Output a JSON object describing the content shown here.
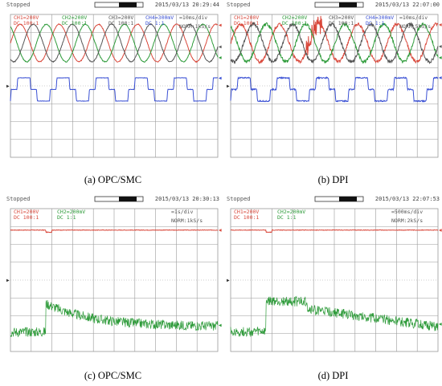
{
  "colors": {
    "ch1": "#d9483b",
    "ch2": "#2e9b3a",
    "ch3": "#555555",
    "ch4": "#3a50d4",
    "grid": "#9a9a9a"
  },
  "chart_data": [
    {
      "id": "a",
      "type": "line",
      "caption": "(a) OPC/SMC",
      "status": "Stopped",
      "timestamp": "2015/03/13 20:29:44",
      "labels": [
        {
          "text": "CH1=200V",
          "color": "ch1"
        },
        {
          "text": "DC 100:1",
          "color": "ch1"
        },
        {
          "text": "CH2=200V",
          "color": "ch2"
        },
        {
          "text": "DC 100:1",
          "color": "ch2"
        },
        {
          "text": "CH3=200V",
          "color": "ch3"
        },
        {
          "text": "DC 100:1",
          "color": "ch3"
        },
        {
          "text": "CH4=300mV",
          "color": "ch4"
        },
        {
          "text": "DC 1:1",
          "color": "ch4"
        },
        {
          "text": "=10ms/div",
          "color": "ch3"
        },
        {
          "text": "NORM:1kS/s",
          "color": "ch3"
        }
      ],
      "cycles": 5.3,
      "noise": 0.05,
      "series": [
        {
          "name": "CH1",
          "color": "ch1",
          "shape": "sine",
          "phase_deg": 0
        },
        {
          "name": "CH2",
          "color": "ch2",
          "shape": "sine",
          "phase_deg": 120
        },
        {
          "name": "CH3",
          "color": "ch3",
          "shape": "sine",
          "phase_deg": 240
        },
        {
          "name": "CH4",
          "color": "ch4",
          "shape": "sixstep"
        }
      ]
    },
    {
      "id": "b",
      "type": "line",
      "caption": "(b) DPI",
      "status": "Stopped",
      "timestamp": "2015/03/13 22:07:00",
      "labels": [
        {
          "text": "CH1=200V",
          "color": "ch1"
        },
        {
          "text": "DC 100:1",
          "color": "ch1"
        },
        {
          "text": "CH2=200V",
          "color": "ch2"
        },
        {
          "text": "DC 100:1",
          "color": "ch2"
        },
        {
          "text": "CH3=200V",
          "color": "ch3"
        },
        {
          "text": "DC 100:1",
          "color": "ch3"
        },
        {
          "text": "CH4=300mV",
          "color": "ch4"
        },
        {
          "text": "DC 1:1",
          "color": "ch4"
        },
        {
          "text": "=10ms/div",
          "color": "ch3"
        },
        {
          "text": "NORM:5kS/s",
          "color": "ch3"
        }
      ],
      "cycles": 5.3,
      "noise": 0.18,
      "series": [
        {
          "name": "CH1",
          "color": "ch1",
          "shape": "sine",
          "phase_deg": 0
        },
        {
          "name": "CH2",
          "color": "ch2",
          "shape": "sine",
          "phase_deg": 120
        },
        {
          "name": "CH3",
          "color": "ch3",
          "shape": "sine",
          "phase_deg": 240
        },
        {
          "name": "CH4",
          "color": "ch4",
          "shape": "sixstep"
        }
      ]
    },
    {
      "id": "c",
      "type": "line",
      "caption": "(c) OPC/SMC",
      "status": "Stopped",
      "timestamp": "2015/03/13 20:30:13",
      "labels": [
        {
          "text": "CH1=200V",
          "color": "ch1"
        },
        {
          "text": "DC 100:1",
          "color": "ch1"
        },
        {
          "text": "CH2=200mV",
          "color": "ch2"
        },
        {
          "text": "DC 1:1",
          "color": "ch2"
        },
        {
          "text": "=1s/div",
          "color": "ch3"
        },
        {
          "text": "NORM:1kS/s",
          "color": "ch3"
        }
      ],
      "step_at": 0.17,
      "decay_rate": 4.5,
      "series": [
        {
          "name": "CH1",
          "color": "ch1",
          "shape": "dc_dip",
          "base_div": 2.8
        },
        {
          "name": "CH2",
          "color": "ch2",
          "shape": "step_decay",
          "base_div": -2.9,
          "peak_div": -1.3,
          "final_div": -2.6
        }
      ]
    },
    {
      "id": "d",
      "type": "line",
      "caption": "(d) DPI",
      "status": "Stopped",
      "timestamp": "2015/03/13 22:07:53",
      "labels": [
        {
          "text": "CH1=200V",
          "color": "ch1"
        },
        {
          "text": "DC 100:1",
          "color": "ch1"
        },
        {
          "text": "CH2=200mV",
          "color": "ch2"
        },
        {
          "text": "DC 1:1",
          "color": "ch2"
        },
        {
          "text": "=500ms/div",
          "color": "ch3"
        },
        {
          "text": "NORM:2kS/s",
          "color": "ch3"
        }
      ],
      "step_at": 0.17,
      "decay_rate": 1.0,
      "series": [
        {
          "name": "CH1",
          "color": "ch1",
          "shape": "dc_dip",
          "base_div": 2.8
        },
        {
          "name": "CH2",
          "color": "ch2",
          "shape": "step_slow",
          "base_div": -2.9,
          "peak_div": -1.3,
          "final_div": -2.6
        }
      ]
    }
  ]
}
